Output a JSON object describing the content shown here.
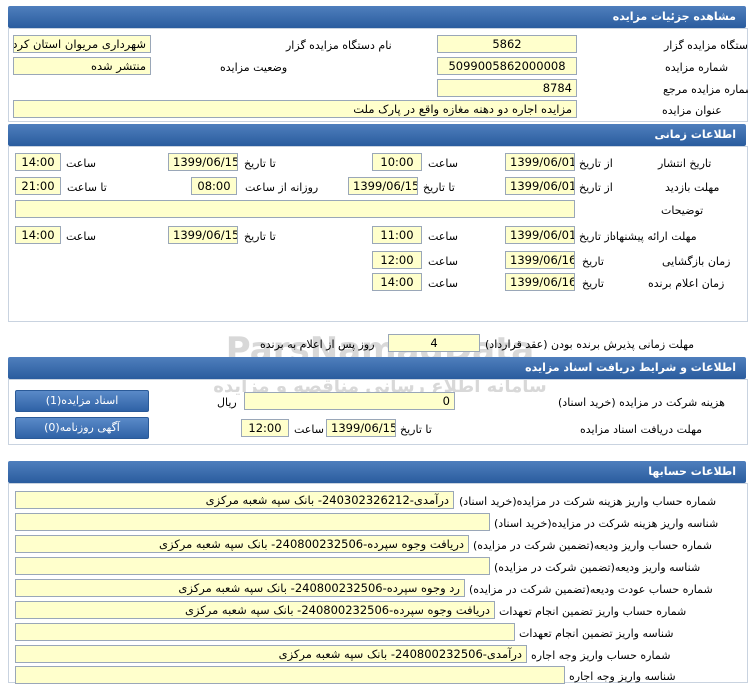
{
  "sections": {
    "details": "مشاهده جزئیات مزایده",
    "timing": "اطلاعات زمانی",
    "documents": "اطلاعات و شرایط دریافت اسناد مزایده",
    "accounts": "اطلاعات حسابها"
  },
  "watermark": {
    "brand": "ParsNamadData",
    "tagline": "سامانه اطلاع رسانی مناقصه و مزایده"
  },
  "details": {
    "auctioneer_code_label": "کد دستگاه مزایده گزار",
    "auctioneer_code": "5862",
    "auctioneer_name_label": "نام دستگاه مزایده گزار",
    "auctioneer_name": "شهرداری مریوان استان کرد",
    "auction_number_label": "شماره مزایده",
    "auction_number": "5099005862000008",
    "status_label": "وضعیت مزایده",
    "status": "منتشر شده",
    "reference_number_label": "شماره مزایده مرجع",
    "reference_number": "8784",
    "title_label": "عنوان مزایده",
    "title": "مزایده اجاره دو دهنه مغازه واقع در پارک ملت"
  },
  "timing": {
    "publish_label": "تاریخ انتشار",
    "visit_label": "مهلت بازدید",
    "description_label": "توضیحات",
    "offer_label": "مهلت ارائه پیشنهاد",
    "opening_label": "زمان بازگشایی",
    "winner_label": "زمان اعلام برنده",
    "from_date_label": "از تاریخ",
    "to_date_label": "تا تاریخ",
    "date_label": "تاریخ",
    "time_label": "ساعت",
    "daily_from_time_label": "روزانه از ساعت",
    "to_time_label": "تا ساعت",
    "publish_from_date": "1399/06/01",
    "publish_from_time": "10:00",
    "publish_to_date": "1399/06/15",
    "publish_to_time": "14:00",
    "visit_from_date": "1399/06/01",
    "visit_to_date": "1399/06/15",
    "visit_from_time": "08:00",
    "visit_to_time": "21:00",
    "description": "",
    "offer_from_date": "1399/06/01",
    "offer_from_time": "11:00",
    "offer_to_date": "1399/06/15",
    "offer_to_time": "14:00",
    "opening_date": "1399/06/16",
    "opening_time": "12:00",
    "winner_date": "1399/06/16",
    "winner_time": "14:00",
    "acceptance_label": "مهلت زمانی پذیرش برنده بودن (عقد قرارداد)",
    "acceptance_days": "4",
    "acceptance_suffix": "روز پس از اعلام به برنده"
  },
  "documents": {
    "fee_label": "هزینه شرکت در مزایده (خرید اسناد)",
    "fee_value": "0",
    "currency": "ریال",
    "receive_label": "مهلت دریافت اسناد مزایده",
    "to_date_label": "تا تاریخ",
    "to_date": "1399/06/15",
    "time_label": "ساعت",
    "time": "12:00",
    "documents_button": "اسناد مزایده(1)",
    "newspaper_button": "آگهی روزنامه(0)"
  },
  "accounts": [
    {
      "label": "شماره حساب واریز هزینه شرکت در مزایده(خرید اسناد)",
      "value": "درآمدی-240302326212- بانک سپه شعبه مرکزی"
    },
    {
      "label": "شناسه واریز هزینه شرکت در مزایده(خرید اسناد)",
      "value": ""
    },
    {
      "label": "شماره حساب واریز ودیعه(تضمین شرکت در مزایده)",
      "value": "دریافت وجوه سپرده-240800232506- بانک سپه شعبه مرکزی"
    },
    {
      "label": "شناسه واریز ودیعه(تضمین شرکت در مزایده)",
      "value": ""
    },
    {
      "label": "شماره حساب عودت ودیعه(تضمین شرکت در مزایده)",
      "value": "رد وجوه سپرده-240800232506- بانک سپه شعبه مرکزی"
    },
    {
      "label": "شماره حساب واریز تضمین انجام تعهدات",
      "value": "دریافت وجوه سپرده-240800232506- بانک سپه شعبه مرکزی"
    },
    {
      "label": "شناسه واریز تضمین انجام تعهدات",
      "value": ""
    },
    {
      "label": "شماره حساب واریز وجه اجاره",
      "value": "درآمدی-240800232506- بانک سپه شعبه مرکزی"
    },
    {
      "label": "شناسه واریز وجه اجاره",
      "value": ""
    }
  ]
}
